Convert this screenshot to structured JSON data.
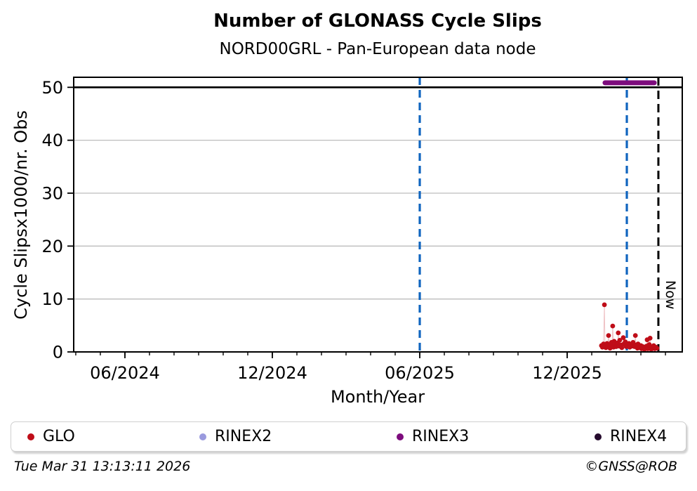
{
  "footer": {
    "timestamp": "Tue Mar 31 13:13:11 2026",
    "credit": "©GNSS@ROB"
  },
  "legend": {
    "items": [
      {
        "label": "GLO",
        "color": "#bf0d18"
      },
      {
        "label": "RINEX2",
        "color": "#9a9ade"
      },
      {
        "label": "RINEX3",
        "color": "#7d0c7d"
      },
      {
        "label": "RINEX4",
        "color": "#260b2e"
      }
    ]
  },
  "chart_data": {
    "type": "scatter",
    "title": "Number of GLONASS Cycle Slips",
    "subtitle": "NORD00GRL - Pan-European data node",
    "xlabel": "Month/Year",
    "ylabel": "Cycle Slipsx1000/nr. Obs",
    "now_label": "Now",
    "grid": "horizontal",
    "legend_position": "bottom",
    "colors": {
      "grid": "#bdbdbd",
      "frame": "#000000",
      "cap_line": "#000000"
    },
    "cap_line_y": 50,
    "y_axis": {
      "range": [
        0,
        51.9
      ],
      "ticks": [
        0,
        10,
        20,
        30,
        40,
        50
      ]
    },
    "x_axis": {
      "range_decimal_years": [
        2024.243,
        2026.307
      ],
      "major_ticks": [
        {
          "year": 2024.4167,
          "label": "06/2024"
        },
        {
          "year": 2024.9167,
          "label": "12/2024"
        },
        {
          "year": 2025.4167,
          "label": "06/2025"
        },
        {
          "year": 2025.9167,
          "label": "12/2025"
        }
      ],
      "minor_ticks": {
        "first_decimal_year": 2024.25,
        "step_years": 0.0833333,
        "count": 25
      }
    },
    "vertical_lines": [
      {
        "name": "event-line-1",
        "year": 2025.4167,
        "color": "#1065bf",
        "dash": "11 7",
        "width": 3.2
      },
      {
        "name": "event-line-2",
        "year": 2026.119,
        "color": "#1065bf",
        "dash": "11 7",
        "width": 3.2
      },
      {
        "name": "now-line",
        "year": 2026.226,
        "color": "#000000",
        "dash": "12 7",
        "width": 3.0,
        "label": "Now"
      }
    ],
    "series": [
      {
        "name": "GLO",
        "color": "#bf0d18",
        "draw": "markers-faint-line",
        "points": [
          [
            2026.033,
            1.2
          ],
          [
            2026.036,
            0.9
          ],
          [
            2026.04,
            1.5
          ],
          [
            2026.043,
            8.9
          ],
          [
            2026.045,
            1.1
          ],
          [
            2026.048,
            0.8
          ],
          [
            2026.052,
            1.6
          ],
          [
            2026.055,
            1.0
          ],
          [
            2026.057,
            3.1
          ],
          [
            2026.06,
            1.3
          ],
          [
            2026.062,
            0.7
          ],
          [
            2026.067,
            1.8
          ],
          [
            2026.069,
            1.2
          ],
          [
            2026.071,
            4.9
          ],
          [
            2026.074,
            0.9
          ],
          [
            2026.076,
            2.0
          ],
          [
            2026.081,
            1.4
          ],
          [
            2026.083,
            1.0
          ],
          [
            2026.088,
            1.7
          ],
          [
            2026.09,
            3.6
          ],
          [
            2026.093,
            1.1
          ],
          [
            2026.095,
            2.2
          ],
          [
            2026.1,
            1.3
          ],
          [
            2026.102,
            0.8
          ],
          [
            2026.107,
            2.7
          ],
          [
            2026.109,
            1.5
          ],
          [
            2026.114,
            1.9
          ],
          [
            2026.117,
            1.0
          ],
          [
            2026.121,
            1.2
          ],
          [
            2026.126,
            1.6
          ],
          [
            2026.129,
            0.9
          ],
          [
            2026.133,
            1.4
          ],
          [
            2026.138,
            1.1
          ],
          [
            2026.14,
            1.8
          ],
          [
            2026.145,
            1.0
          ],
          [
            2026.148,
            3.1
          ],
          [
            2026.15,
            1.3
          ],
          [
            2026.155,
            0.7
          ],
          [
            2026.157,
            1.5
          ],
          [
            2026.162,
            0.9
          ],
          [
            2026.167,
            1.2
          ],
          [
            2026.169,
            0.6
          ],
          [
            2026.174,
            1.0
          ],
          [
            2026.179,
            0.5
          ],
          [
            2026.181,
            0.8
          ],
          [
            2026.186,
            1.1
          ],
          [
            2026.188,
            2.3
          ],
          [
            2026.19,
            0.6
          ],
          [
            2026.195,
            1.4
          ],
          [
            2026.198,
            2.6
          ],
          [
            2026.2,
            0.9
          ],
          [
            2026.202,
            0.5
          ],
          [
            2026.207,
            0.7
          ],
          [
            2026.21,
            1.2
          ],
          [
            2026.214,
            0.6
          ],
          [
            2026.217,
            0.9
          ],
          [
            2026.221,
            0.7
          ]
        ]
      },
      {
        "name": "RINEX2",
        "color": "#9a9ade",
        "draw": "markers-faint-line",
        "points": []
      },
      {
        "name": "RINEX3",
        "color": "#7d0c7d",
        "draw": "thick-line",
        "points": [
          [
            2026.045,
            50.85
          ],
          [
            2026.212,
            50.85
          ]
        ]
      },
      {
        "name": "RINEX4",
        "color": "#260b2e",
        "draw": "markers-faint-line",
        "points": []
      }
    ]
  }
}
